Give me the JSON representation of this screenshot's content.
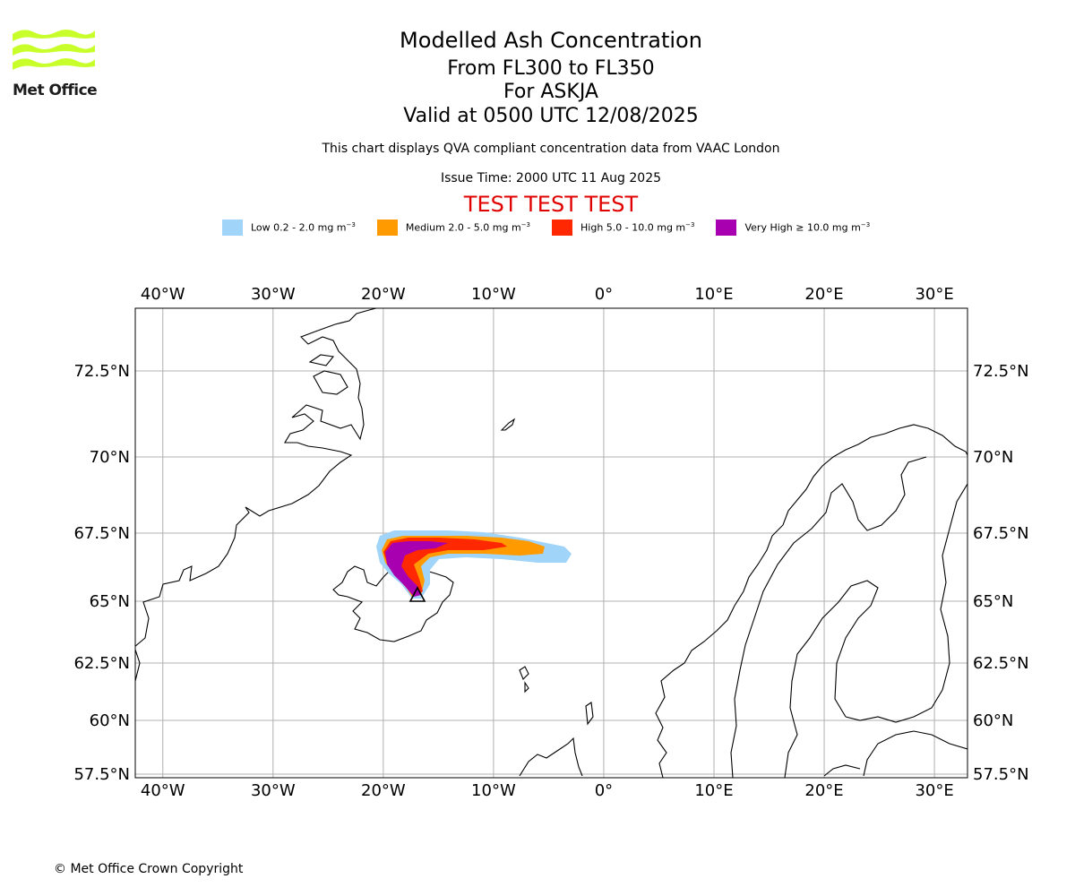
{
  "logo": {
    "text": "Met Office"
  },
  "header": {
    "title": "Modelled Ash Concentration",
    "flight_levels": "From FL300 to FL350",
    "volcano": "For ASKJA",
    "valid": "Valid at 0500 UTC 12/08/2025",
    "description": "This chart displays QVA compliant concentration data from VAAC London",
    "issue_time": "Issue Time: 2000 UTC 11 Aug 2025",
    "test_banner": "TEST TEST TEST"
  },
  "legend": [
    {
      "label": "Low 0.2 - 2.0 mg m",
      "sup": "−3",
      "color": "#a0d4f8"
    },
    {
      "label": "Medium 2.0 - 5.0 mg m",
      "sup": "−3",
      "color": "#ff9a00"
    },
    {
      "label": "High 5.0 - 10.0 mg m",
      "sup": "−3",
      "color": "#ff2800"
    },
    {
      "label": "Very High ≥ 10.0 mg m",
      "sup": "−3",
      "color": "#a800b0"
    }
  ],
  "map": {
    "lon_range": [
      -42.5,
      33.0
    ],
    "lat_range": [
      57.3,
      74.7
    ],
    "lon_ticks": [
      {
        "value": -40,
        "label": "40°W"
      },
      {
        "value": -30,
        "label": "30°W"
      },
      {
        "value": -20,
        "label": "20°W"
      },
      {
        "value": -10,
        "label": "10°W"
      },
      {
        "value": 0,
        "label": "0°"
      },
      {
        "value": 10,
        "label": "10°E"
      },
      {
        "value": 20,
        "label": "20°E"
      },
      {
        "value": 30,
        "label": "30°E"
      }
    ],
    "lat_ticks": [
      {
        "value": 72.5,
        "label": "72.5°N"
      },
      {
        "value": 70,
        "label": "70°N"
      },
      {
        "value": 67.5,
        "label": "67.5°N"
      },
      {
        "value": 65,
        "label": "65°N"
      },
      {
        "value": 62.5,
        "label": "62.5°N"
      },
      {
        "value": 60,
        "label": "60°N"
      },
      {
        "value": 57.5,
        "label": "57.5°N"
      }
    ],
    "volcano_symbol": "triangle-icon"
  },
  "footer": {
    "copyright": "© Met Office Crown Copyright"
  }
}
